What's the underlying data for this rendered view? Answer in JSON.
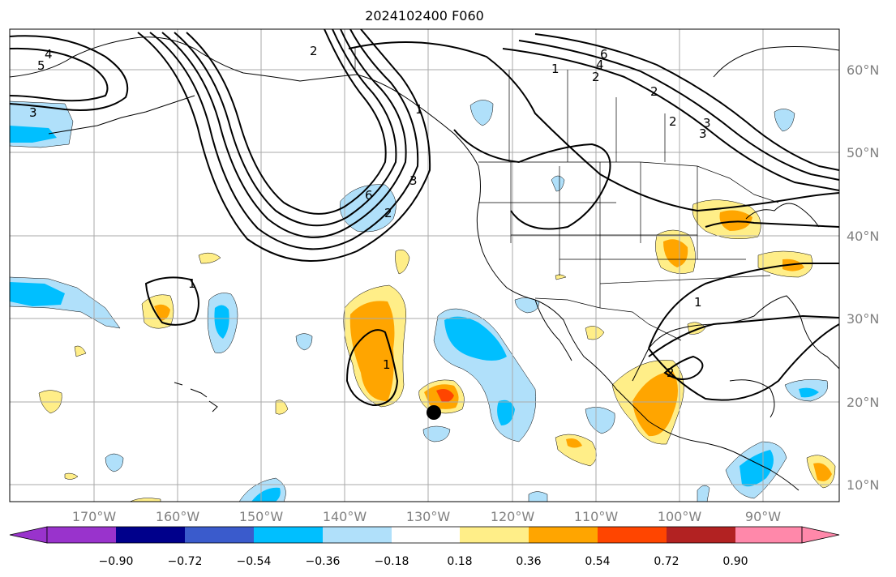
{
  "title": "2024102400 F060",
  "lat_labels": [
    "60°N",
    "50°N",
    "40°N",
    "30°N",
    "20°N",
    "10°N"
  ],
  "lon_labels": [
    "170°W",
    "160°W",
    "150°W",
    "140°W",
    "130°W",
    "120°W",
    "110°W",
    "100°W",
    "90°W"
  ],
  "colorbar": {
    "tick_labels": [
      "−0.90",
      "−0.72",
      "−0.54",
      "−0.36",
      "−0.18",
      "0.18",
      "0.36",
      "0.54",
      "0.72",
      "0.90"
    ],
    "colors": [
      "#9933cc",
      "#00008b",
      "#3a5bcc",
      "#00bfff",
      "#b0e0fa",
      "#ffffff",
      "#ffee88",
      "#ffa500",
      "#ff4500",
      "#b22222",
      "#ff88aa"
    ]
  },
  "contour_labels": [
    "4",
    "5",
    "3",
    "1",
    "6",
    "2",
    "1",
    "2",
    "1",
    "6",
    "4",
    "2",
    "1",
    "2",
    "3",
    "1",
    "2",
    "2",
    "3",
    "3"
  ],
  "fill_colors": {
    "light_blue": "#b0e0fa",
    "blue": "#00bfff",
    "yellow": "#ffee88",
    "orange": "#ffa500",
    "red": "#ff4500"
  },
  "marker": "storm-center"
}
